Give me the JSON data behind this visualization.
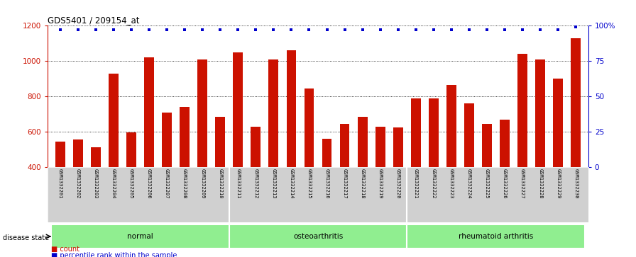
{
  "title": "GDS5401 / 209154_at",
  "samples": [
    "GSM1332201",
    "GSM1332202",
    "GSM1332203",
    "GSM1332204",
    "GSM1332205",
    "GSM1332206",
    "GSM1332207",
    "GSM1332208",
    "GSM1332209",
    "GSM1332210",
    "GSM1332211",
    "GSM1332212",
    "GSM1332213",
    "GSM1332214",
    "GSM1332215",
    "GSM1332216",
    "GSM1332217",
    "GSM1332218",
    "GSM1332219",
    "GSM1332220",
    "GSM1332221",
    "GSM1332222",
    "GSM1332223",
    "GSM1332224",
    "GSM1332225",
    "GSM1332226",
    "GSM1332227",
    "GSM1332228",
    "GSM1332229",
    "GSM1332230"
  ],
  "counts": [
    545,
    555,
    510,
    930,
    595,
    1020,
    710,
    740,
    1010,
    685,
    1050,
    630,
    1010,
    1060,
    845,
    560,
    645,
    685,
    630,
    625,
    790,
    790,
    865,
    760,
    645,
    670,
    1040,
    1010,
    900,
    1130
  ],
  "groups": [
    {
      "label": "normal",
      "start": 0,
      "end": 9
    },
    {
      "label": "osteoarthritis",
      "start": 10,
      "end": 19
    },
    {
      "label": "rheumatoid arthritis",
      "start": 20,
      "end": 29
    }
  ],
  "group_dividers": [
    10,
    20
  ],
  "ylim_left": [
    400,
    1200
  ],
  "ylim_right": [
    0,
    100
  ],
  "bar_color": "#cc1100",
  "dot_color": "#0000cc",
  "grid_color": "black",
  "left_tick_color": "#cc1100",
  "right_tick_color": "#0000cc",
  "left_yticks": [
    400,
    600,
    800,
    1000,
    1200
  ],
  "right_yticks": [
    0,
    25,
    50,
    75,
    100
  ],
  "right_yticklabels": [
    "0",
    "25",
    "50",
    "75",
    "100%"
  ],
  "legend_count_label": "count",
  "legend_pct_label": "percentile rank within the sample",
  "group_color": "#90EE90",
  "label_bg_color": "#d0d0d0"
}
